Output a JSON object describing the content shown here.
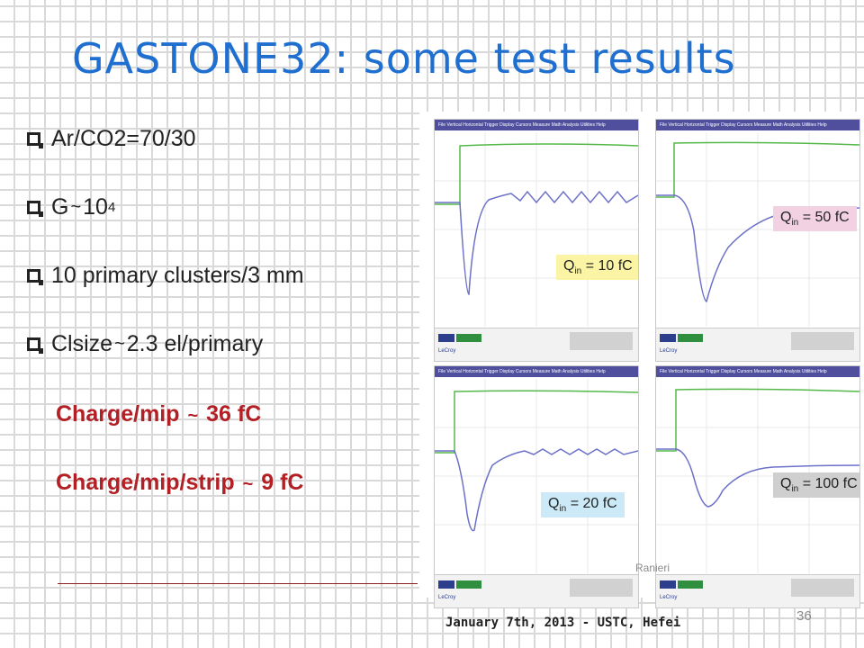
{
  "slide": {
    "title": "GASTONE32: some test results",
    "bullets": [
      {
        "text": "Ar/CO2=70/30"
      },
      {
        "prefix": "G",
        "tilde": "~",
        "value": "10",
        "sup": "4"
      },
      {
        "text": "10 primary clusters/3 mm"
      },
      {
        "prefix": "Clsize",
        "tilde": "~",
        "value": "2.3 el/primary"
      }
    ],
    "highlights": [
      {
        "prefix": "Charge/mip",
        "tilde": "~",
        "value": "36 fC"
      },
      {
        "prefix": "Charge/mip/strip",
        "tilde": "~",
        "value": "9 fC"
      }
    ],
    "footer": "January 7th, 2013 - USTC, Hefei",
    "page_number": "36"
  },
  "photo": {
    "watermark": "Ranieri",
    "scope_menu": "File  Vertical  Horizontal  Trigger  Display  Cursors  Measure  Math  Analysis  Utilities  Help",
    "scope_logo": "LeCroy",
    "screens": [
      {
        "q_symbol": "Q",
        "q_sub": "in",
        "q_value": "= 10 fC"
      },
      {
        "q_symbol": "Q",
        "q_sub": "in",
        "q_value": "= 50 fC"
      },
      {
        "q_symbol": "Q",
        "q_sub": "in",
        "q_value": "= 20 fC"
      },
      {
        "q_symbol": "Q",
        "q_sub": "in",
        "q_value": "= 100 fC"
      }
    ]
  },
  "colors": {
    "title": "#1f6fd1",
    "highlight": "#b21f24",
    "trace_green": "#54b848",
    "trace_blue": "#6c71c8",
    "scope_grid": "#e9e9e9",
    "menubar": "#4f4f9d"
  }
}
